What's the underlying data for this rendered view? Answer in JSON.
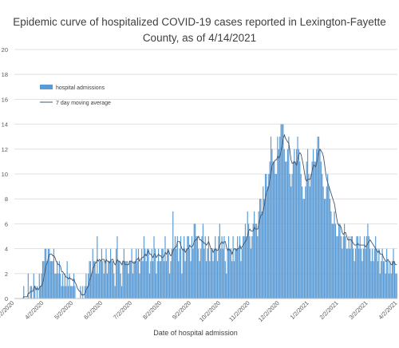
{
  "chart_data": {
    "type": "bar",
    "title_line1": "Epidemic curve of hospitalized COVID-19 cases reported in Lexington-Fayette",
    "title_line2": "County, as of 4/14/2021",
    "xlabel": "Date of hospital admission",
    "ylabel": "",
    "ylim": [
      0,
      20
    ],
    "yticks": [
      "0",
      "2",
      "4",
      "6",
      "8",
      "10",
      "12",
      "14",
      "16",
      "18",
      "20"
    ],
    "xticks": [
      "3/2/2020",
      "4/2/2020",
      "5/2/2020",
      "6/2/2020",
      "7/2/2020",
      "8/2/2020",
      "9/2/2020",
      "10/2/2020",
      "11/2/2020",
      "12/2/2020",
      "1/2/2021",
      "2/2/2021",
      "3/2/2021",
      "4/2/2021"
    ],
    "grid": true,
    "legend_position": "top-left",
    "series": [
      {
        "name": "hospital admissions",
        "kind": "bar",
        "color": "#5b9bd5",
        "values": [
          0,
          0,
          0,
          0,
          0,
          0,
          0,
          0,
          1,
          0,
          0,
          0,
          2,
          0,
          1,
          1,
          0,
          2,
          1,
          0,
          1,
          0,
          2,
          1,
          2,
          3,
          3,
          4,
          4,
          3,
          4,
          4,
          3,
          3,
          3,
          4,
          2,
          2,
          3,
          2,
          3,
          2,
          1,
          2,
          1,
          2,
          1,
          3,
          1,
          2,
          1,
          1,
          1,
          2,
          1,
          0,
          0,
          0,
          0,
          1,
          0,
          1,
          0,
          1,
          2,
          1,
          2,
          3,
          3,
          2,
          4,
          3,
          3,
          2,
          5,
          2,
          3,
          3,
          4,
          3,
          2,
          3,
          4,
          2,
          3,
          3,
          4,
          3,
          3,
          2,
          1,
          4,
          5,
          3,
          3,
          2,
          1,
          3,
          4,
          3,
          3,
          3,
          2,
          3,
          3,
          4,
          2,
          3,
          3,
          4,
          3,
          4,
          2,
          3,
          4,
          3,
          5,
          4,
          3,
          4,
          4,
          2,
          3,
          4,
          3,
          5,
          4,
          2,
          3,
          4,
          3,
          3,
          4,
          4,
          3,
          5,
          3,
          4,
          4,
          2,
          3,
          4,
          7,
          4,
          5,
          4,
          5,
          3,
          4,
          5,
          2,
          4,
          5,
          3,
          4,
          5,
          5,
          4,
          3,
          5,
          4,
          6,
          6,
          5,
          5,
          4,
          3,
          4,
          5,
          6,
          4,
          5,
          3,
          4,
          5,
          3,
          4,
          4,
          3,
          4,
          5,
          4,
          3,
          5,
          6,
          4,
          5,
          4,
          5,
          3,
          2,
          4,
          5,
          4,
          4,
          3,
          5,
          3,
          4,
          4,
          5,
          4,
          5,
          3,
          4,
          5,
          5,
          6,
          5,
          7,
          6,
          5,
          4,
          5,
          6,
          7,
          6,
          6,
          5,
          7,
          8,
          8,
          7,
          9,
          8,
          10,
          10,
          9,
          10,
          11,
          13,
          12,
          11,
          11,
          10,
          10,
          13,
          12,
          13,
          14,
          14,
          14,
          12,
          11,
          11,
          12,
          13,
          10,
          9,
          10,
          11,
          12,
          11,
          12,
          13,
          12,
          11,
          10,
          9,
          8,
          8,
          9,
          11,
          12,
          10,
          9,
          10,
          11,
          12,
          11,
          11,
          12,
          13,
          13,
          12,
          11,
          10,
          9,
          8,
          8,
          9,
          10,
          9,
          8,
          7,
          6,
          6,
          7,
          6,
          5,
          5,
          6,
          6,
          5,
          4,
          5,
          6,
          5,
          4,
          4,
          5,
          4,
          5,
          5,
          4,
          3,
          4,
          5,
          5,
          4,
          5,
          4,
          3,
          4,
          5,
          4,
          5,
          6,
          5,
          4,
          3,
          4,
          3,
          4,
          5,
          4,
          3,
          4,
          2,
          3,
          4,
          3,
          3,
          2,
          4,
          3,
          2,
          3,
          2,
          3,
          4,
          3,
          2,
          2
        ]
      },
      {
        "name": "7 day moving average",
        "kind": "line",
        "color": "#44546a"
      }
    ]
  }
}
